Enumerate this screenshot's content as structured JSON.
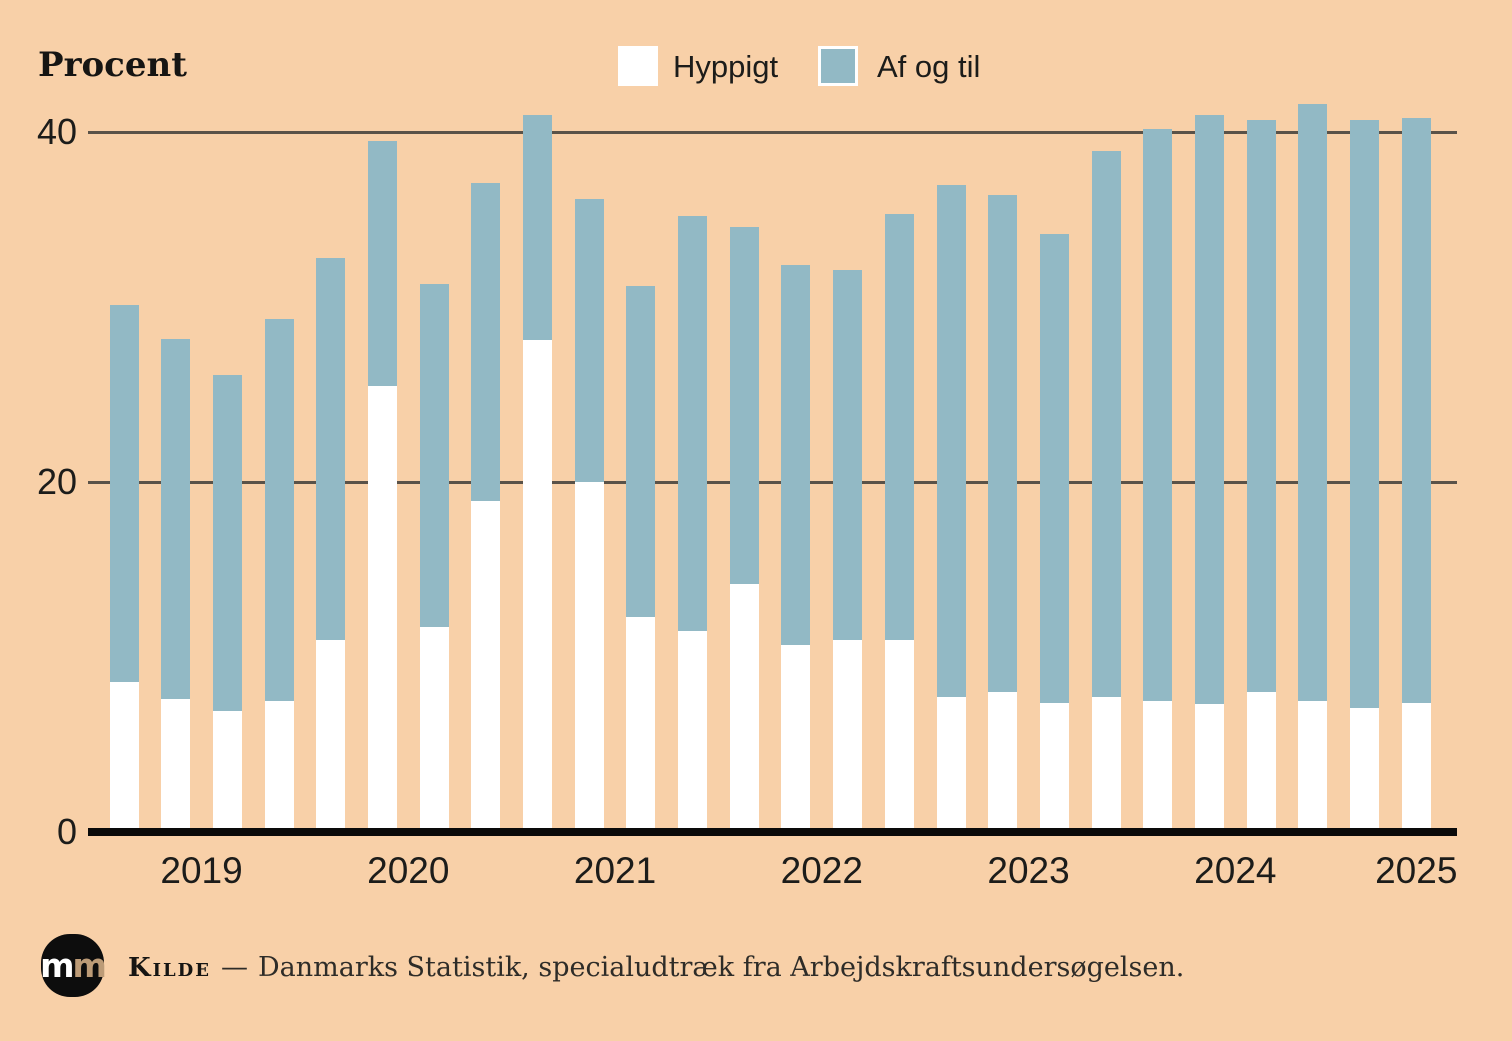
{
  "page": {
    "background": "#f8d0a8"
  },
  "header": {
    "y_axis_title": "Procent"
  },
  "legend": [
    {
      "label": "Hyppigt",
      "color": "#ffffff"
    },
    {
      "label": "Af og til",
      "color": "#92b9c5"
    }
  ],
  "chart_data": {
    "type": "bar",
    "stacked": true,
    "title": "",
    "xlabel": "",
    "ylabel": "Procent",
    "ylim": [
      0,
      42
    ],
    "yticks": [
      0,
      20,
      40
    ],
    "grid": "horizontal",
    "legend_position": "top-center",
    "categories": [
      "2019K1",
      "2019K2",
      "2019K3",
      "2019K4",
      "2020K1",
      "2020K2",
      "2020K3",
      "2020K4",
      "2021K1",
      "2021K2",
      "2021K3",
      "2021K4",
      "2022K1",
      "2022K2",
      "2022K3",
      "2022K4",
      "2023K1",
      "2023K2",
      "2023K3",
      "2023K4",
      "2024K1",
      "2024K2",
      "2024K3",
      "2024K4",
      "2025K1",
      "2025K2"
    ],
    "year_labels": [
      "2019",
      "2020",
      "2021",
      "2022",
      "2023",
      "2024",
      "2025"
    ],
    "series": [
      {
        "name": "Hyppigt",
        "color": "#ffffff",
        "values": [
          8.6,
          7.6,
          6.9,
          7.5,
          11.0,
          25.5,
          11.7,
          18.9,
          28.1,
          20.0,
          12.3,
          11.5,
          14.2,
          10.7,
          11.0,
          11.0,
          7.7,
          8.0,
          7.4,
          7.7,
          7.5,
          7.3,
          8.0,
          7.5,
          7.1,
          7.4
        ]
      },
      {
        "name": "Af og til",
        "color": "#92b9c5",
        "values": [
          21.5,
          20.6,
          19.2,
          21.8,
          21.8,
          14.0,
          19.6,
          18.2,
          12.9,
          16.2,
          18.9,
          23.7,
          20.4,
          21.7,
          21.1,
          24.3,
          29.3,
          28.4,
          26.8,
          31.2,
          32.7,
          33.7,
          32.7,
          34.1,
          33.6,
          33.4
        ]
      }
    ],
    "totals": [
      30.1,
      28.2,
      26.1,
      29.3,
      32.8,
      39.5,
      31.3,
      37.1,
      41.0,
      36.2,
      31.2,
      35.2,
      34.6,
      32.4,
      32.1,
      35.3,
      37.0,
      36.4,
      34.2,
      38.9,
      40.2,
      41.0,
      40.7,
      41.6,
      40.7,
      40.8
    ]
  },
  "colors": {
    "background": "#f8d0a8",
    "bar_hyppigt": "#ffffff",
    "bar_afogtil": "#92b9c5",
    "gridline": "#5a5248",
    "axis_line": "#0a0a0a",
    "text": "#1c1c1a"
  },
  "footer": {
    "logo_m1": "m",
    "logo_m2": "m",
    "kilde_label": "Kilde",
    "separator": "—",
    "source_text": "Danmarks Statistik, specialudtræk fra Arbejdskraftsundersøgelsen."
  }
}
